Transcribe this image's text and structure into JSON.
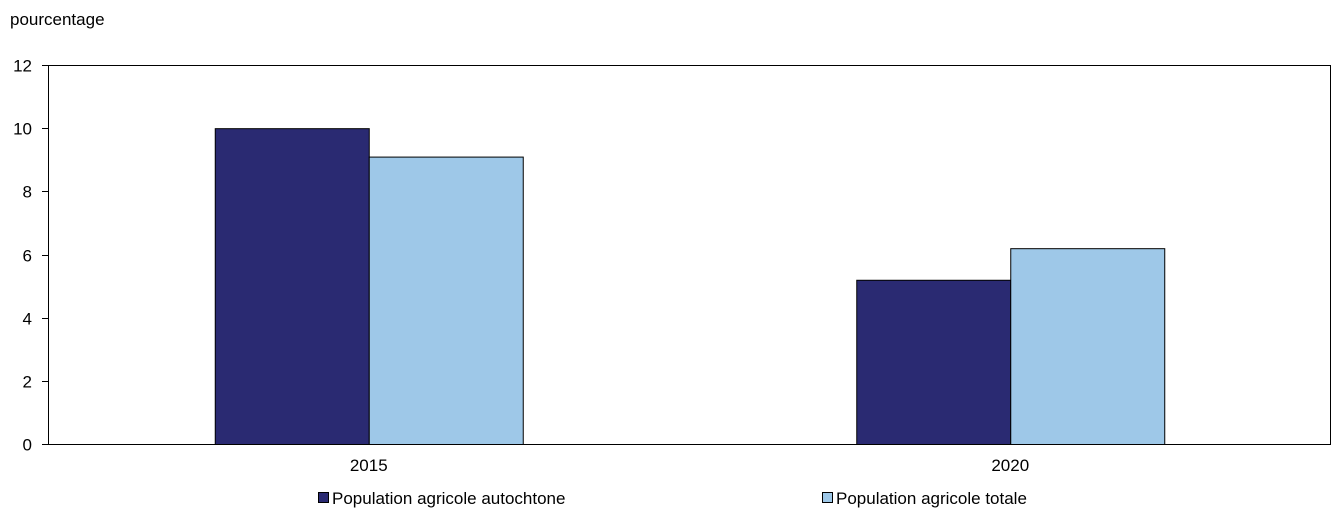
{
  "chart_data": {
    "type": "bar",
    "title": "",
    "xlabel": "",
    "ylabel": "pourcentage",
    "ylim": [
      0,
      12
    ],
    "yticks": [
      0,
      2,
      4,
      6,
      8,
      10,
      12
    ],
    "grid": false,
    "legend_position": "bottom",
    "categories": [
      "2015",
      "2020"
    ],
    "series": [
      {
        "name": "Population agricole autochtone",
        "color": "#2a2a72",
        "values": [
          10.0,
          5.2
        ]
      },
      {
        "name": "Population agricole totale",
        "color": "#9ec8e8",
        "values": [
          9.1,
          6.2
        ]
      }
    ]
  }
}
